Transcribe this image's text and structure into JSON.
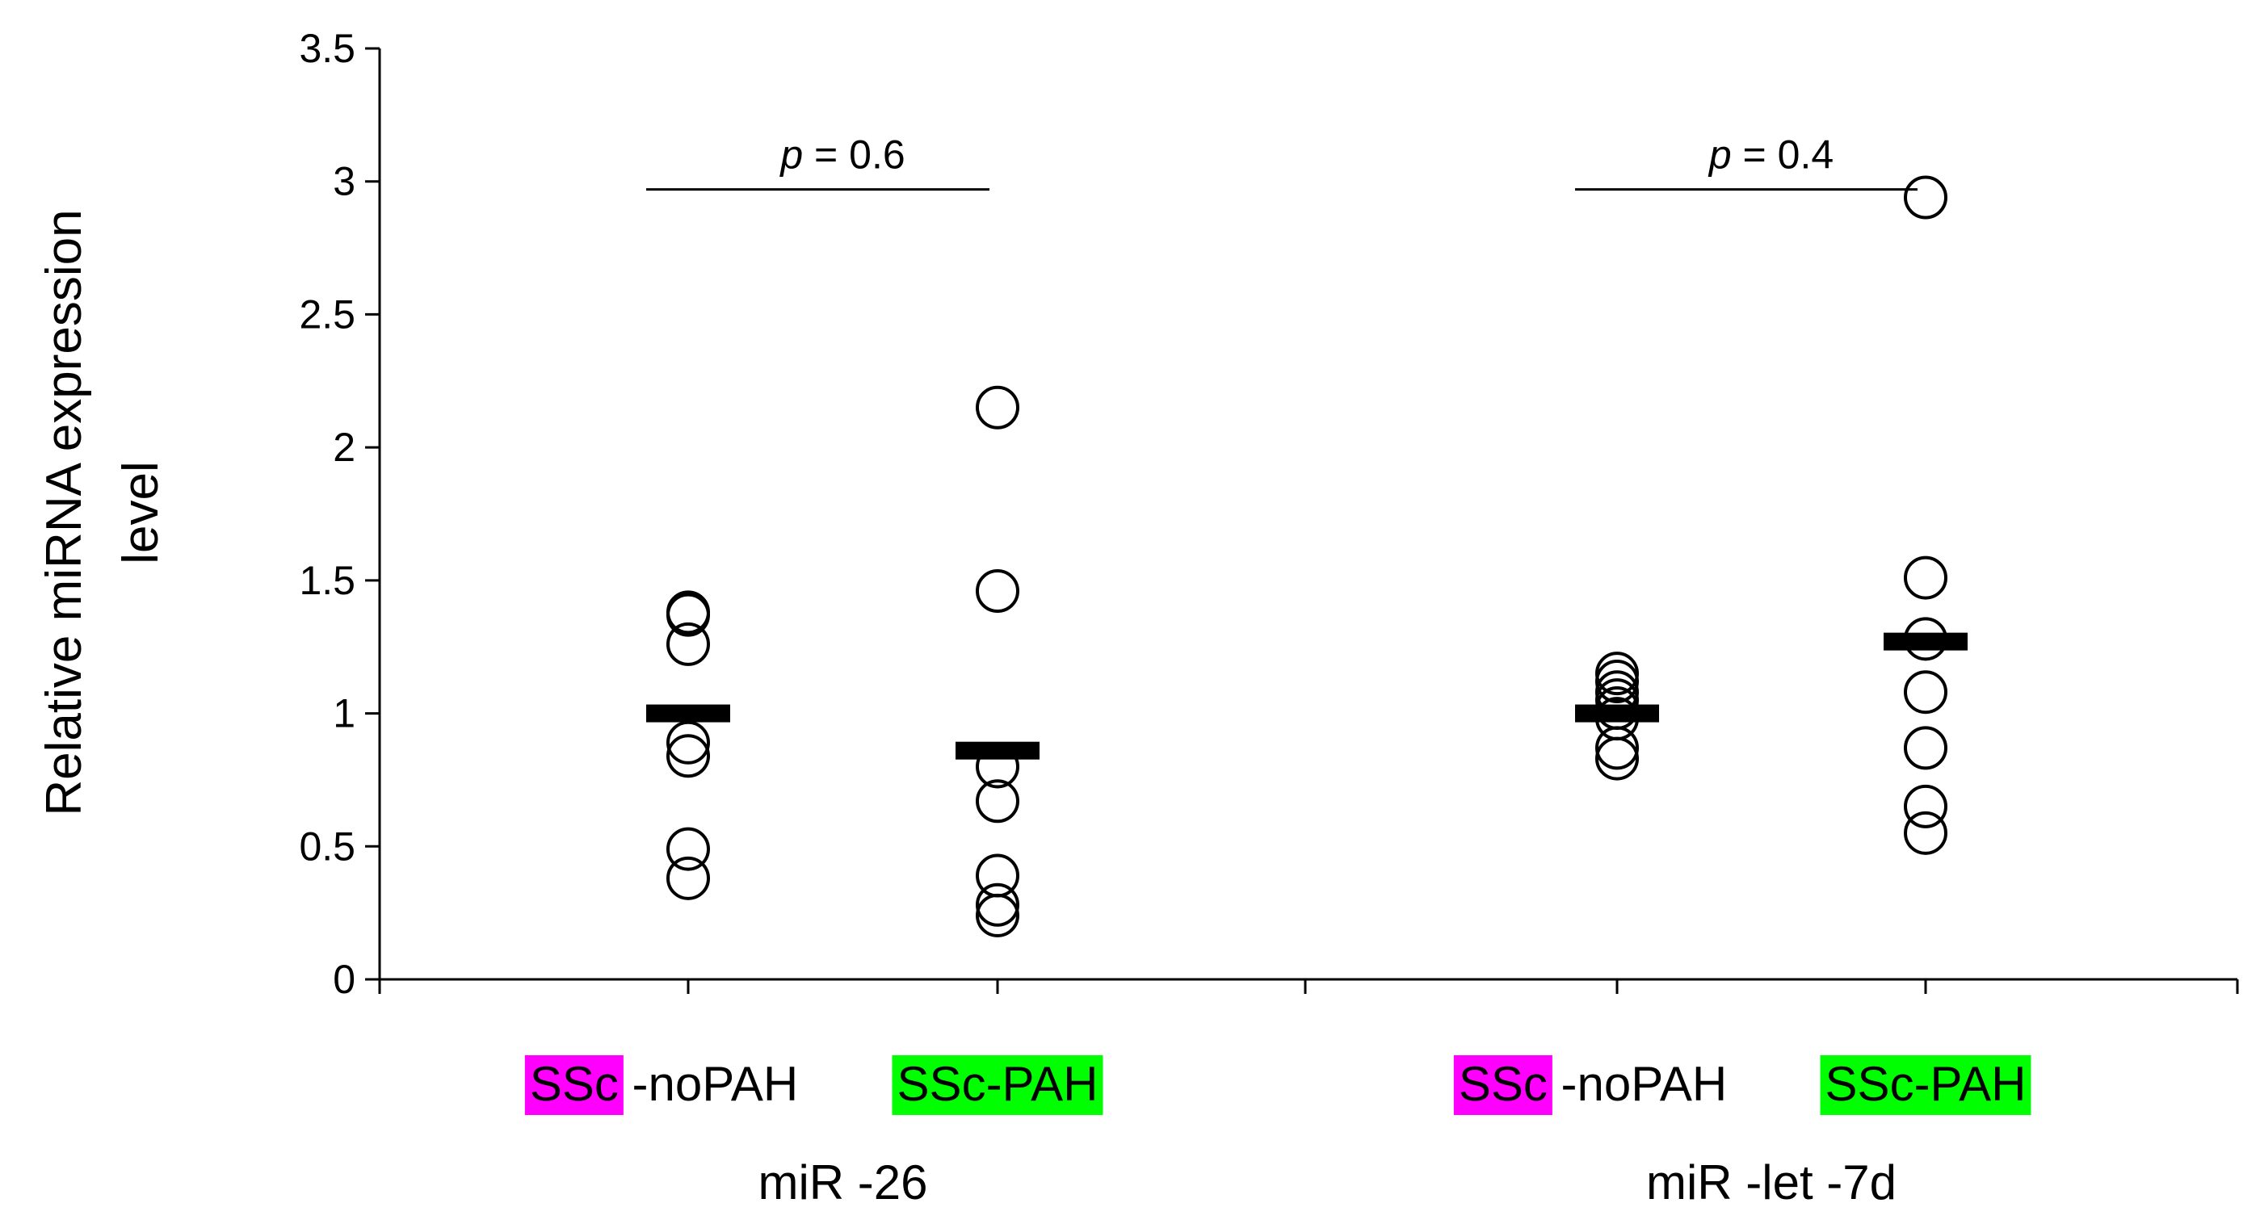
{
  "chart_data": {
    "type": "scatter",
    "title": "",
    "ylabel_lines": [
      "Relative miRNA expression",
      "level"
    ],
    "ylim": [
      0,
      3.5
    ],
    "yticks": [
      "0",
      "0.5",
      "1",
      "1.5",
      "2",
      "2.5",
      "3",
      "3.5"
    ],
    "ytick_values": [
      0,
      0.5,
      1,
      1.5,
      2,
      2.5,
      3,
      3.5
    ],
    "highlight_colors": {
      "SSc": "#ff00ff",
      "SSc-PAH": "#00ff00"
    },
    "groups": [
      {
        "name": "miR -26",
        "p_label": "p",
        "p_value_text": "= 0.6",
        "categories": [
          {
            "highlight_text": "SSc",
            "rest_text": " -noPAH",
            "highlight_color": "#ff00ff",
            "values": [
              1.38,
              1.37,
              1.26,
              0.89,
              0.84,
              0.49,
              0.38
            ],
            "median": 1.0
          },
          {
            "highlight_text": "SSc-PAH",
            "rest_text": "",
            "highlight_color": "#00ff00",
            "values": [
              2.15,
              1.46,
              0.8,
              0.67,
              0.39,
              0.28,
              0.24
            ],
            "median": 0.86
          }
        ]
      },
      {
        "name": "miR -let -7d",
        "p_label": "p",
        "p_value_text": "= 0.4",
        "categories": [
          {
            "highlight_text": "SSc",
            "rest_text": " -noPAH",
            "highlight_color": "#ff00ff",
            "values": [
              1.15,
              1.12,
              1.08,
              1.05,
              1.02,
              0.98,
              0.87,
              0.83
            ],
            "median": 1.0
          },
          {
            "highlight_text": "SSc-PAH",
            "rest_text": "",
            "highlight_color": "#00ff00",
            "values": [
              2.94,
              1.51,
              1.28,
              1.08,
              0.87,
              0.65,
              0.55
            ],
            "median": 1.27
          }
        ]
      }
    ]
  }
}
